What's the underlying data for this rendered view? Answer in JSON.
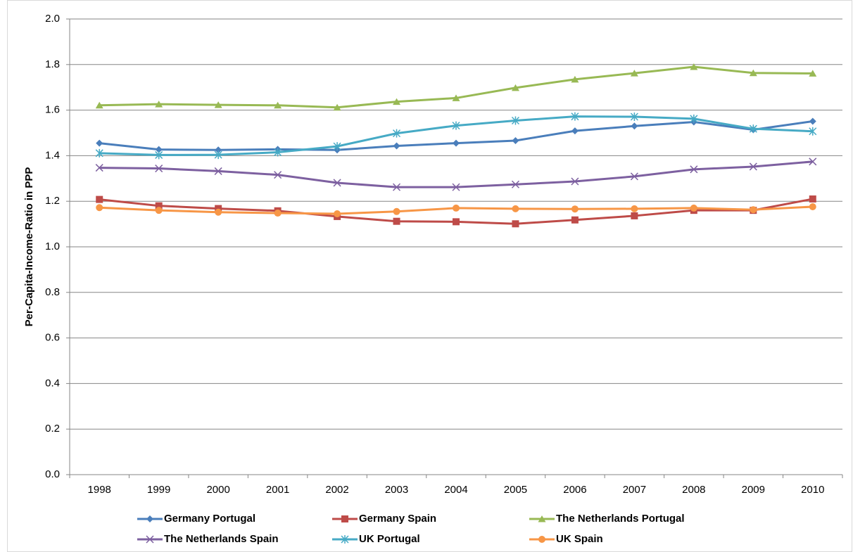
{
  "chart_data": {
    "type": "line",
    "y_label": "Per-Capita-Income-Ratio in PPP",
    "categories": [
      "1998",
      "1999",
      "2000",
      "2001",
      "2002",
      "2003",
      "2004",
      "2005",
      "2006",
      "2007",
      "2008",
      "2009",
      "2010"
    ],
    "ylim": [
      0,
      2
    ],
    "yticks": [
      {
        "value": 0,
        "label": "0.0"
      },
      0.2,
      0.4,
      0.6,
      0.8,
      {
        "value": 1,
        "label": "1.0"
      },
      1.2,
      1.4,
      1.6,
      1.8,
      {
        "value": 2,
        "label": "2.0"
      }
    ],
    "grid": true,
    "legend": "bottom",
    "series": [
      {
        "name": "Germany Portugal",
        "color": "#4a7ebb",
        "marker": "diamond",
        "values": [
          1.455,
          1.427,
          1.425,
          1.428,
          1.425,
          1.443,
          1.455,
          1.466,
          1.509,
          1.53,
          1.548,
          1.514,
          1.551
        ]
      },
      {
        "name": "Germany Spain",
        "color": "#be4b48",
        "marker": "square",
        "values": [
          1.208,
          1.18,
          1.168,
          1.158,
          1.133,
          1.112,
          1.11,
          1.101,
          1.118,
          1.136,
          1.16,
          1.16,
          1.21
        ]
      },
      {
        "name": "The Netherlands Portugal",
        "color": "#98b954",
        "marker": "triangle",
        "values": [
          1.621,
          1.626,
          1.623,
          1.621,
          1.612,
          1.637,
          1.653,
          1.698,
          1.735,
          1.762,
          1.79,
          1.763,
          1.761
        ]
      },
      {
        "name": "The Netherlands Spain",
        "color": "#7d60a0",
        "marker": "x",
        "values": [
          1.347,
          1.344,
          1.332,
          1.316,
          1.281,
          1.262,
          1.262,
          1.274,
          1.287,
          1.309,
          1.34,
          1.352,
          1.374
        ]
      },
      {
        "name": "UK Portugal",
        "color": "#46aac5",
        "marker": "asterisk",
        "values": [
          1.411,
          1.403,
          1.404,
          1.415,
          1.441,
          1.498,
          1.532,
          1.554,
          1.572,
          1.571,
          1.562,
          1.518,
          1.507
        ]
      },
      {
        "name": "UK Spain",
        "color": "#f79646",
        "marker": "circle",
        "values": [
          1.172,
          1.16,
          1.152,
          1.148,
          1.145,
          1.155,
          1.17,
          1.167,
          1.166,
          1.167,
          1.17,
          1.163,
          1.176
        ]
      }
    ]
  }
}
